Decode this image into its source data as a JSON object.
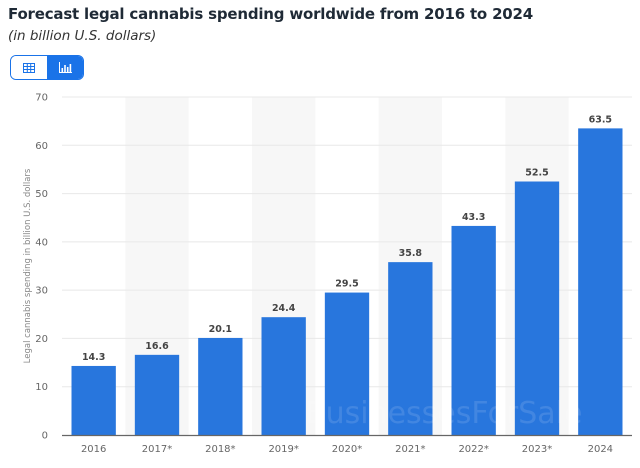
{
  "header": {
    "title": "Forecast legal cannabis spending worldwide from 2016 to 2024",
    "subtitle": "(in billion U.S. dollars)"
  },
  "view_toggle": {
    "options": [
      {
        "name": "table-view",
        "icon": "table-icon",
        "active": false
      },
      {
        "name": "chart-view",
        "icon": "bar-chart-icon",
        "active": true
      }
    ],
    "accent": "#1a73e8"
  },
  "watermark": "BusinessesForSale",
  "chart_data": {
    "type": "bar",
    "title": "Forecast legal cannabis spending worldwide from 2016 to 2024",
    "subtitle": "(in billion U.S. dollars)",
    "xlabel": "",
    "ylabel": "Legal cannabis spending in billion U.S. dollars",
    "categories": [
      "2016",
      "2017*",
      "2018*",
      "2019*",
      "2020*",
      "2021*",
      "2022*",
      "2023*",
      "2024"
    ],
    "values": [
      14.3,
      16.6,
      20.1,
      24.4,
      29.5,
      35.8,
      43.3,
      52.5,
      63.5
    ],
    "value_labels": [
      "14.3",
      "16.6",
      "20.1",
      "24.4",
      "29.5",
      "35.8",
      "43.3",
      "52.5",
      "63.5"
    ],
    "ylim": [
      0,
      70
    ],
    "yticks": [
      0,
      10,
      20,
      30,
      40,
      50,
      60,
      70
    ],
    "ytick_labels": [
      "0",
      "10",
      "20",
      "30",
      "40",
      "50",
      "60",
      "70"
    ],
    "grid": true,
    "bar_color": "#2876dd",
    "alternate_column_shading": true
  }
}
